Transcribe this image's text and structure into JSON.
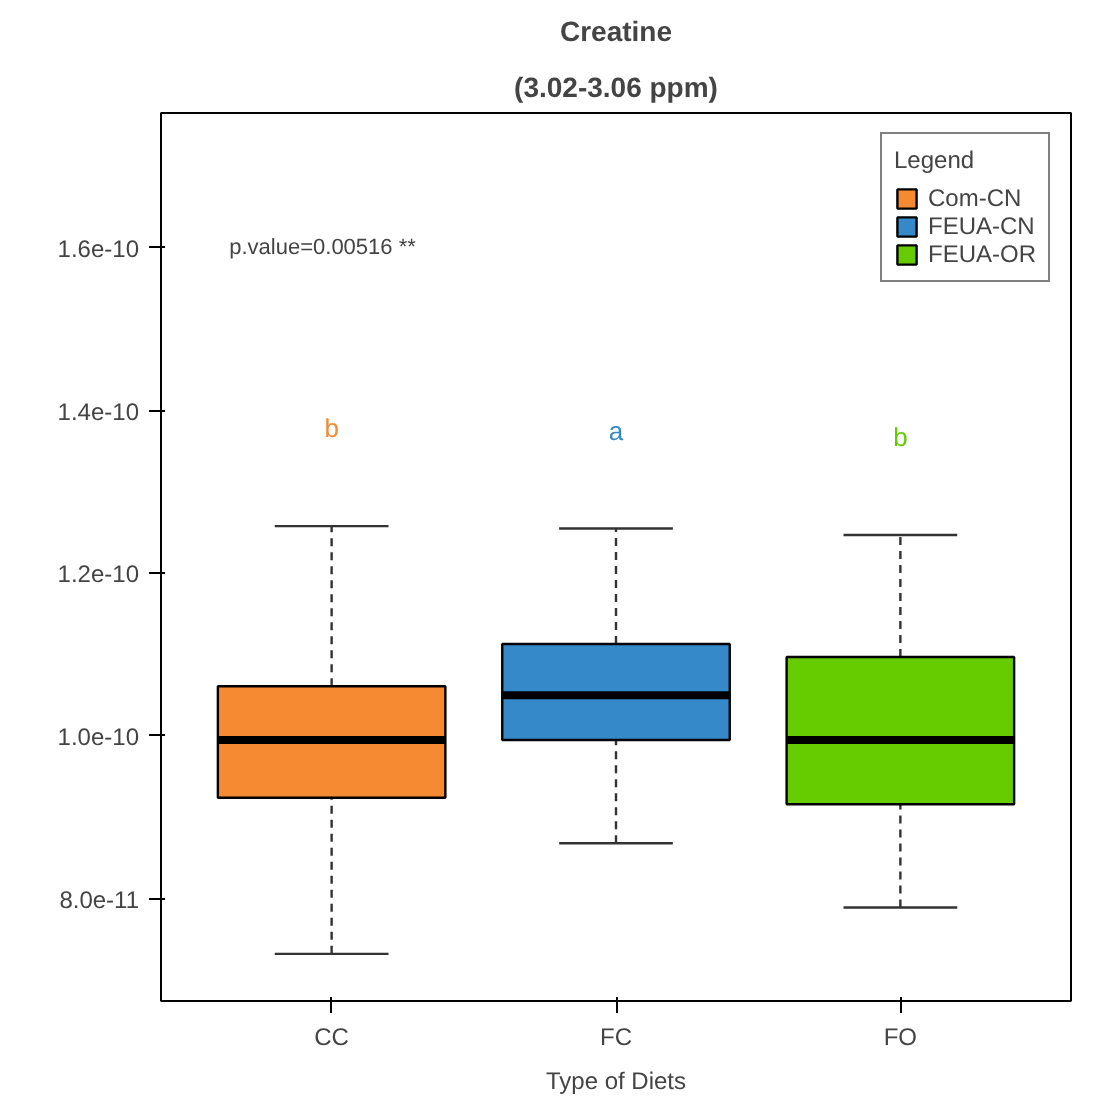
{
  "chart_data": {
    "type": "box",
    "title": "Creatine",
    "subtitle": "(3.02-3.06 ppm)",
    "xlabel": "Type of Diets",
    "legend_title": "Legend",
    "categories": [
      "CC",
      "FC",
      "FO"
    ],
    "series": [
      {
        "name": "Com-CN",
        "color": "#f58a33",
        "boxes": [
          {
            "low": 7.32e-11,
            "q1": 9.24e-11,
            "median": 9.95e-11,
            "q3": 1.061e-10,
            "high": 1.258e-10
          },
          null,
          null
        ]
      },
      {
        "name": "FEUA-CN",
        "color": "#3589c9",
        "boxes": [
          null,
          {
            "low": 8.68e-11,
            "q1": 9.95e-11,
            "median": 1.05e-10,
            "q3": 1.113e-10,
            "high": 1.255e-10
          },
          null
        ]
      },
      {
        "name": "FEUA-OR",
        "color": "#66cc00",
        "boxes": [
          null,
          null,
          {
            "low": 7.89e-11,
            "q1": 9.16e-11,
            "median": 9.95e-11,
            "q3": 1.097e-10,
            "high": 1.247e-10
          }
        ]
      }
    ],
    "ylim": [
      6.74e-11,
      1.766e-10
    ],
    "yticks": [
      {
        "value": 8e-11,
        "label": "8.0e-11"
      },
      {
        "value": 1e-10,
        "label": "1.0e-10"
      },
      {
        "value": 1.2e-10,
        "label": "1.2e-10"
      },
      {
        "value": 1.4e-10,
        "label": "1.4e-10"
      },
      {
        "value": 1.6e-10,
        "label": "1.6e-10"
      }
    ],
    "annotations": [
      "p.value=0.00516 **",
      "b",
      "a",
      "b"
    ],
    "legend": "top right",
    "grid": false
  }
}
